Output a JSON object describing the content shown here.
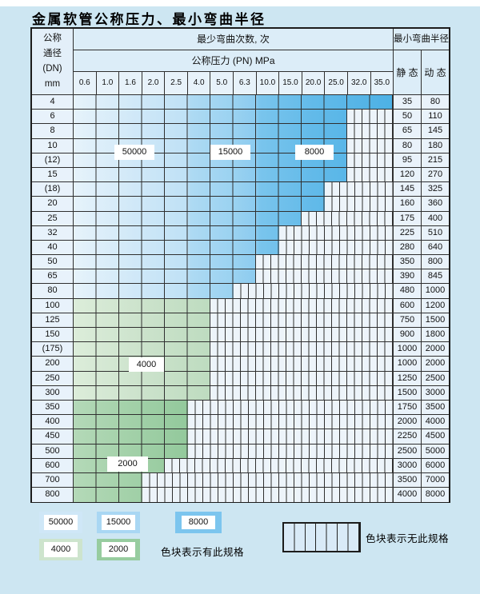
{
  "title": "金属软管公称压力、最小弯曲半径",
  "header": {
    "dn_lines": [
      "公称",
      "通径",
      "(DN)",
      "mm"
    ],
    "cycles_label": "最少弯曲次数, 次",
    "pressure_label": "公称压力 (PN) MPa",
    "radius_label": "最小弯曲半径",
    "static_label": "静 态",
    "dynamic_label": "动 态",
    "pn_values": [
      "0.6",
      "1.0",
      "1.6",
      "2.0",
      "2.5",
      "4.0",
      "5.0",
      "6.3",
      "10.0",
      "15.0",
      "20.0",
      "25.0",
      "32.0",
      "35.0"
    ]
  },
  "rows": [
    {
      "dn": "4",
      "max_pn": "35.0",
      "cols": 14,
      "band": "blue",
      "static": "35",
      "dynamic": "80"
    },
    {
      "dn": "6",
      "max_pn": "25.0",
      "cols": 12,
      "band": "blue",
      "static": "50",
      "dynamic": "110"
    },
    {
      "dn": "8",
      "max_pn": "25.0",
      "cols": 12,
      "band": "blue",
      "static": "65",
      "dynamic": "145"
    },
    {
      "dn": "10",
      "max_pn": "25.0",
      "cols": 12,
      "band": "blue",
      "static": "80",
      "dynamic": "180"
    },
    {
      "dn": "(12)",
      "max_pn": "25.0",
      "cols": 12,
      "band": "blue",
      "static": "95",
      "dynamic": "215"
    },
    {
      "dn": "15",
      "max_pn": "25.0",
      "cols": 12,
      "band": "blue",
      "static": "120",
      "dynamic": "270"
    },
    {
      "dn": "(18)",
      "max_pn": "20.0",
      "cols": 11,
      "band": "blue",
      "static": "145",
      "dynamic": "325"
    },
    {
      "dn": "20",
      "max_pn": "20.0",
      "cols": 11,
      "band": "blue",
      "static": "160",
      "dynamic": "360"
    },
    {
      "dn": "25",
      "max_pn": "15.0",
      "cols": 10,
      "band": "blue",
      "static": "175",
      "dynamic": "400"
    },
    {
      "dn": "32",
      "max_pn": "10.0",
      "cols": 9,
      "band": "blue",
      "static": "225",
      "dynamic": "510"
    },
    {
      "dn": "40",
      "max_pn": "10.0",
      "cols": 9,
      "band": "blue",
      "static": "280",
      "dynamic": "640"
    },
    {
      "dn": "50",
      "max_pn": "6.3",
      "cols": 8,
      "band": "blue",
      "static": "350",
      "dynamic": "800"
    },
    {
      "dn": "65",
      "max_pn": "6.3",
      "cols": 8,
      "band": "blue",
      "static": "390",
      "dynamic": "845"
    },
    {
      "dn": "80",
      "max_pn": "5.0",
      "cols": 7,
      "band": "blue",
      "static": "480",
      "dynamic": "1000"
    },
    {
      "dn": "100",
      "max_pn": "4.0",
      "cols": 6,
      "band": "green-light",
      "static": "600",
      "dynamic": "1200"
    },
    {
      "dn": "125",
      "max_pn": "4.0",
      "cols": 6,
      "band": "green-light",
      "static": "750",
      "dynamic": "1500"
    },
    {
      "dn": "150",
      "max_pn": "4.0",
      "cols": 6,
      "band": "green-light",
      "static": "900",
      "dynamic": "1800"
    },
    {
      "dn": "(175)",
      "max_pn": "4.0",
      "cols": 6,
      "band": "green-light",
      "static": "1000",
      "dynamic": "2000"
    },
    {
      "dn": "200",
      "max_pn": "4.0",
      "cols": 6,
      "band": "green-light",
      "static": "1000",
      "dynamic": "2000"
    },
    {
      "dn": "250",
      "max_pn": "4.0",
      "cols": 6,
      "band": "green-light",
      "static": "1250",
      "dynamic": "2500"
    },
    {
      "dn": "300",
      "max_pn": "4.0",
      "cols": 6,
      "band": "green-light",
      "static": "1500",
      "dynamic": "3000"
    },
    {
      "dn": "350",
      "max_pn": "2.5",
      "cols": 5,
      "band": "green-dark",
      "static": "1750",
      "dynamic": "3500"
    },
    {
      "dn": "400",
      "max_pn": "2.5",
      "cols": 5,
      "band": "green-dark",
      "static": "2000",
      "dynamic": "4000"
    },
    {
      "dn": "450",
      "max_pn": "2.5",
      "cols": 5,
      "band": "green-dark",
      "static": "2250",
      "dynamic": "4500"
    },
    {
      "dn": "500",
      "max_pn": "2.5",
      "cols": 5,
      "band": "green-dark",
      "static": "2500",
      "dynamic": "5000"
    },
    {
      "dn": "600",
      "max_pn": "2.0",
      "cols": 4,
      "band": "green-dark",
      "static": "3000",
      "dynamic": "6000"
    },
    {
      "dn": "700",
      "max_pn": "1.6",
      "cols": 3,
      "band": "green-dark",
      "static": "3500",
      "dynamic": "7000"
    },
    {
      "dn": "800",
      "max_pn": "1.6",
      "cols": 3,
      "band": "green-dark",
      "static": "4000",
      "dynamic": "8000"
    }
  ],
  "overlay_labels": [
    "50000",
    "15000",
    "8000",
    "4000",
    "2000"
  ],
  "legend": {
    "items": [
      {
        "label": "50000",
        "color": "#cfe7f7"
      },
      {
        "label": "15000",
        "color": "#a9d7f3"
      },
      {
        "label": "8000",
        "color": "#7cc5ee"
      },
      {
        "label": "4000",
        "color": "#cde4cd"
      },
      {
        "label": "2000",
        "color": "#97cc9f"
      }
    ],
    "has_spec_note": "色块表示有此规格",
    "no_spec_note": "色块表示无此规格"
  }
}
